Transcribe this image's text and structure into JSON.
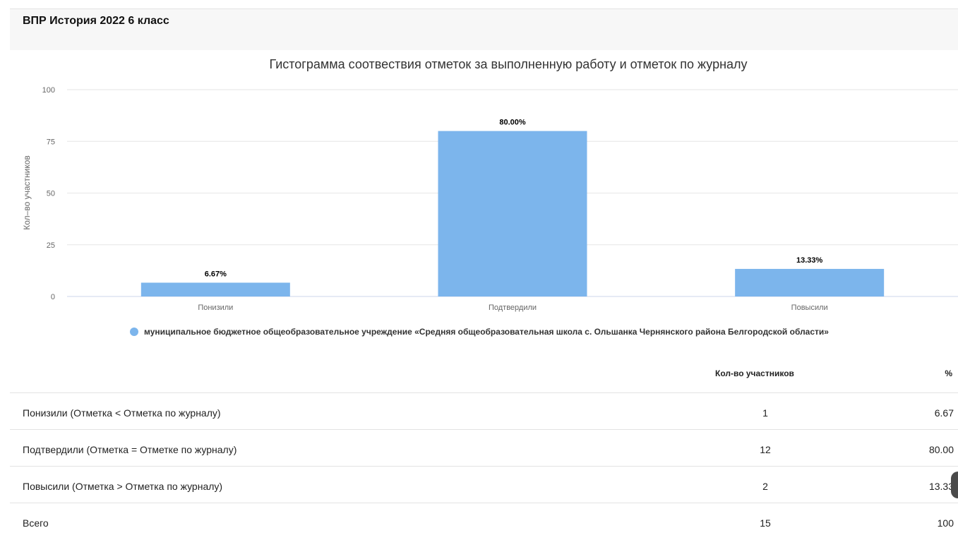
{
  "page": {
    "title": "ВПР История 2022 6 класс"
  },
  "chart_data": {
    "type": "bar",
    "title": "Гистограмма соотвествия отметок за выполненную работу и отметок по журналу",
    "ylabel": "Кол–во участников",
    "xlabel": "",
    "categories": [
      "Понизили",
      "Подтвердили",
      "Повысили"
    ],
    "ylim": [
      0,
      100
    ],
    "yticks": [
      0,
      25,
      50,
      75,
      100
    ],
    "grid": true,
    "series": [
      {
        "name": "муниципальное бюджетное общеобразовательное учреждение «Средняя общеобразовательная школа с. Ольшанка Чернянского района Белгородской области»",
        "values": [
          6.67,
          80.0,
          13.33
        ],
        "labels": [
          "6.67%",
          "80.00%",
          "13.33%"
        ],
        "color": "#7cb5ec"
      }
    ],
    "legend": "bottom-center"
  },
  "table": {
    "headers": [
      "Кол-во участников",
      "%"
    ],
    "rows": [
      {
        "label": "Понизили (Отметка < Отметка по журналу)",
        "count": "1",
        "percent": "6.67"
      },
      {
        "label": "Подтвердили (Отметка = Отметке по журналу)",
        "count": "12",
        "percent": "80.00"
      },
      {
        "label": "Повысили (Отметка > Отметка по журналу)",
        "count": "2",
        "percent": "13.33"
      },
      {
        "label": "Всего",
        "count": "15",
        "percent": "100"
      }
    ]
  }
}
